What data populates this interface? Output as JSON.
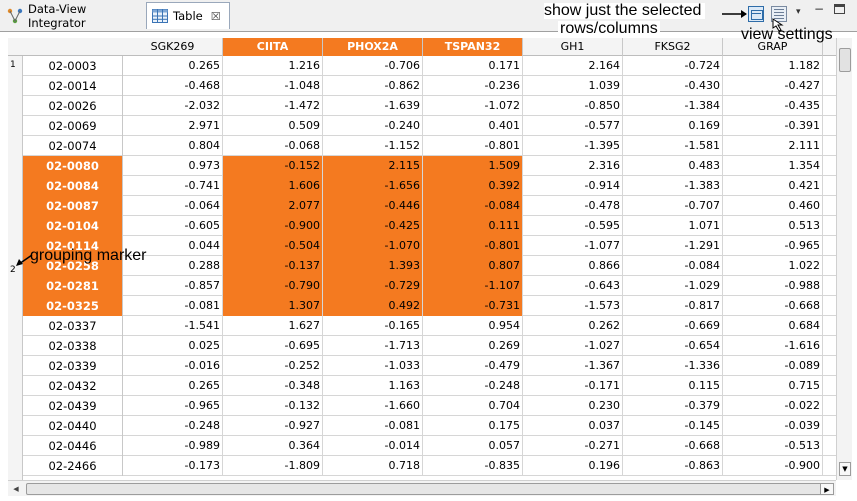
{
  "tabs": [
    {
      "label": "Data-View Integrator",
      "icon": "integrator-icon"
    },
    {
      "label": "Table",
      "icon": "table-icon",
      "close": "☒"
    }
  ],
  "toolbar": {
    "selected_button": "show-selected-icon",
    "view_button": "view-settings-icon",
    "menu_glyph": "▾",
    "minimize_glyph": "−"
  },
  "annotations": {
    "selected_line1": "show just the selected",
    "selected_line2": "rows/columns",
    "view_settings": "view settings",
    "grouping_marker": "grouping marker"
  },
  "group_markers": [
    "1",
    "2"
  ],
  "columns": [
    "SGK269",
    "CIITA",
    "PHOX2A",
    "TSPAN32",
    "GH1",
    "FKSG2",
    "GRAP"
  ],
  "selected_columns": [
    "CIITA",
    "PHOX2A",
    "TSPAN32"
  ],
  "rows": [
    {
      "id": "02-0003",
      "values": [
        "0.265",
        "1.216",
        "-0.706",
        "0.171",
        "2.164",
        "-0.724",
        "1.182"
      ],
      "selected": false
    },
    {
      "id": "02-0014",
      "values": [
        "-0.468",
        "-1.048",
        "-0.862",
        "-0.236",
        "1.039",
        "-0.430",
        "-0.427"
      ],
      "selected": false
    },
    {
      "id": "02-0026",
      "values": [
        "-2.032",
        "-1.472",
        "-1.639",
        "-1.072",
        "-0.850",
        "-1.384",
        "-0.435"
      ],
      "selected": false
    },
    {
      "id": "02-0069",
      "values": [
        "2.971",
        "0.509",
        "-0.240",
        "0.401",
        "-0.577",
        "0.169",
        "-0.391"
      ],
      "selected": false
    },
    {
      "id": "02-0074",
      "values": [
        "0.804",
        "-0.068",
        "-1.152",
        "-0.801",
        "-1.395",
        "-1.581",
        "2.111"
      ],
      "selected": false
    },
    {
      "id": "02-0080",
      "values": [
        "0.973",
        "-0.152",
        "2.115",
        "1.509",
        "2.316",
        "0.483",
        "1.354"
      ],
      "selected": true
    },
    {
      "id": "02-0084",
      "values": [
        "-0.741",
        "1.606",
        "-1.656",
        "0.392",
        "-0.914",
        "-1.383",
        "0.421"
      ],
      "selected": true
    },
    {
      "id": "02-0087",
      "values": [
        "-0.064",
        "2.077",
        "-0.446",
        "-0.084",
        "-0.478",
        "-0.707",
        "0.460"
      ],
      "selected": true
    },
    {
      "id": "02-0104",
      "values": [
        "-0.605",
        "-0.900",
        "-0.425",
        "0.111",
        "-0.595",
        "1.071",
        "0.513"
      ],
      "selected": true
    },
    {
      "id": "02-0114",
      "values": [
        "0.044",
        "-0.504",
        "-1.070",
        "-0.801",
        "-1.077",
        "-1.291",
        "-0.965"
      ],
      "selected": true
    },
    {
      "id": "02-0258",
      "values": [
        "0.288",
        "-0.137",
        "1.393",
        "0.807",
        "0.866",
        "-0.084",
        "1.022"
      ],
      "selected": true
    },
    {
      "id": "02-0281",
      "values": [
        "-0.857",
        "-0.790",
        "-0.729",
        "-1.107",
        "-0.643",
        "-1.029",
        "-0.988"
      ],
      "selected": true
    },
    {
      "id": "02-0325",
      "values": [
        "-0.081",
        "1.307",
        "0.492",
        "-0.731",
        "-1.573",
        "-0.817",
        "-0.668"
      ],
      "selected": true
    },
    {
      "id": "02-0337",
      "values": [
        "-1.541",
        "1.627",
        "-0.165",
        "0.954",
        "0.262",
        "-0.669",
        "0.684"
      ],
      "selected": false
    },
    {
      "id": "02-0338",
      "values": [
        "0.025",
        "-0.695",
        "-1.713",
        "0.269",
        "-1.027",
        "-0.654",
        "-1.616"
      ],
      "selected": false
    },
    {
      "id": "02-0339",
      "values": [
        "-0.016",
        "-0.252",
        "-1.033",
        "-0.479",
        "-1.367",
        "-1.336",
        "-0.089"
      ],
      "selected": false
    },
    {
      "id": "02-0432",
      "values": [
        "0.265",
        "-0.348",
        "1.163",
        "-0.248",
        "-0.171",
        "0.115",
        "0.715"
      ],
      "selected": false
    },
    {
      "id": "02-0439",
      "values": [
        "-0.965",
        "-0.132",
        "-1.660",
        "0.704",
        "0.230",
        "-0.379",
        "-0.022"
      ],
      "selected": false
    },
    {
      "id": "02-0440",
      "values": [
        "-0.248",
        "-0.927",
        "-0.081",
        "0.175",
        "0.037",
        "-0.145",
        "-0.039"
      ],
      "selected": false
    },
    {
      "id": "02-0446",
      "values": [
        "-0.989",
        "0.364",
        "-0.014",
        "0.057",
        "-0.271",
        "-0.668",
        "-0.513"
      ],
      "selected": false
    },
    {
      "id": "02-2466",
      "values": [
        "-0.173",
        "-1.809",
        "0.718",
        "-0.835",
        "0.196",
        "-0.863",
        "-0.900"
      ],
      "selected": false
    }
  ],
  "colors": {
    "selection": "#f47a20",
    "header_bg": "#f4f4f4"
  }
}
